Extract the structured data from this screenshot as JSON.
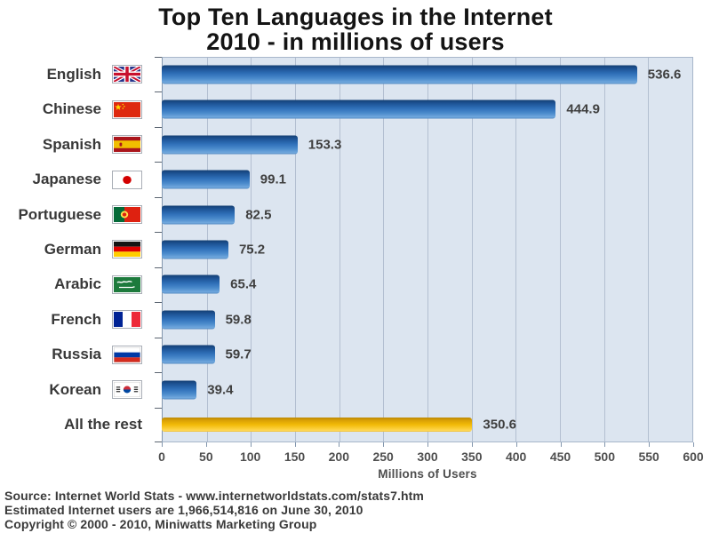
{
  "title": {
    "line1": "Top Ten Languages in the Internet",
    "line2": "2010 - in millions of users"
  },
  "chart_data": {
    "type": "bar",
    "orientation": "horizontal",
    "title": "Top Ten Languages in the Internet 2010 - in millions of users",
    "categories": [
      "English",
      "Chinese",
      "Spanish",
      "Japanese",
      "Portuguese",
      "German",
      "Arabic",
      "French",
      "Russia",
      "Korean",
      "All the rest"
    ],
    "values": [
      536.6,
      444.9,
      153.3,
      99.1,
      82.5,
      75.2,
      65.4,
      59.8,
      59.7,
      39.4,
      350.6
    ],
    "value_labels": [
      "536.6",
      "444.9",
      "153.3",
      "99.1",
      "82.5",
      "75.2",
      "65.4",
      "59.8",
      "59.7",
      "39.4",
      "350.6"
    ],
    "flags": [
      "united-kingdom",
      "china",
      "spain",
      "japan",
      "portugal",
      "germany",
      "saudi-arabia",
      "france",
      "russia",
      "south-korea",
      null
    ],
    "xlabel": "Millions of Users",
    "xlim": [
      0,
      600
    ],
    "xticks": [
      0,
      50,
      100,
      150,
      200,
      250,
      300,
      350,
      400,
      450,
      500,
      550,
      600
    ],
    "grid": true,
    "legend": false,
    "bar_colors": {
      "languages": "#2f6fb8",
      "all_the_rest": "#f2ba07"
    }
  },
  "colors": {
    "plot_background": "#dce5f0",
    "gridline": "#b3bfd1",
    "title_text": "#141414",
    "category_text": "#383838",
    "value_text": "#3f3f3f",
    "axis_text": "#4f4f4f",
    "footer_text": "#3a3a3a"
  },
  "footer": {
    "line1": "Source: Internet World Stats - www.internetworldstats.com/stats7.htm",
    "line2": "Estimated Internet users are 1,966,514,816 on June 30, 2010",
    "line3": "Copyright © 2000 - 2010, Miniwatts Marketing Group"
  }
}
